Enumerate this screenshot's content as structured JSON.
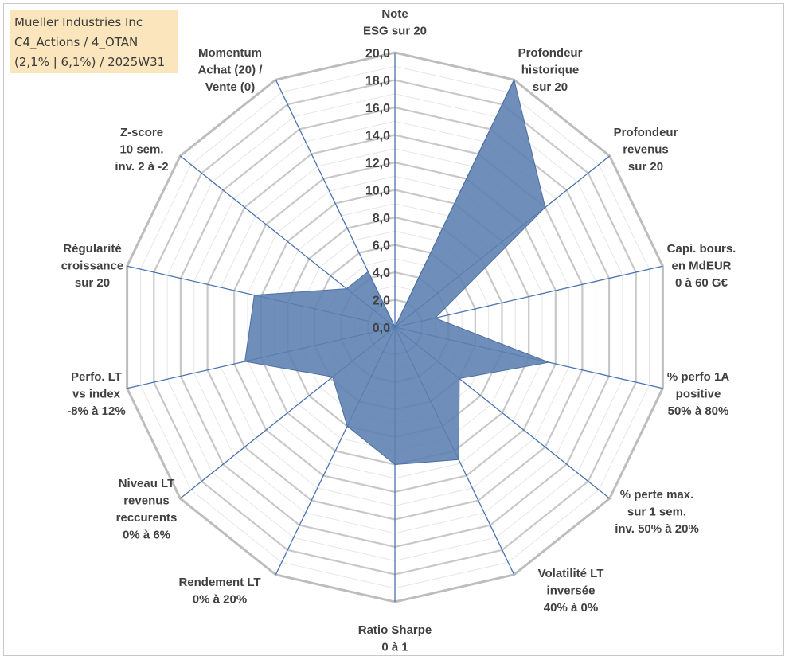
{
  "info_box": {
    "lines": [
      "Mueller Industries Inc",
      "C4_Actions / 4_OTAN",
      "(2,1% | 6,1%) / 2025W31"
    ]
  },
  "chart_data": {
    "type": "radar",
    "rmax": 20,
    "ticks": [
      "0,0",
      "2,0",
      "4,0",
      "6,0",
      "8,0",
      "10,0",
      "12,0",
      "14,0",
      "16,0",
      "18,0",
      "20,0"
    ],
    "tick_values": [
      0,
      2,
      4,
      6,
      8,
      10,
      12,
      14,
      16,
      18,
      20
    ],
    "grid": true,
    "series_color": "#5b7fb0",
    "axes": [
      {
        "label": [
          "Note",
          "ESG sur 20"
        ],
        "value": 0
      },
      {
        "label": [
          "Profondeur",
          "historique",
          "sur 20"
        ],
        "value": 20
      },
      {
        "label": [
          "Profondeur",
          "revenus",
          "sur 20"
        ],
        "value": 14
      },
      {
        "label": [
          "Capi. bours.",
          "en MdEUR",
          "0 à 60 G€"
        ],
        "value": 3
      },
      {
        "label": [
          "% perfo 1A",
          "positive",
          "50% à 80%"
        ],
        "value": 11.5
      },
      {
        "label": [
          "% perte max.",
          "sur 1 sem.",
          "inv. 50% à 20%"
        ],
        "value": 6
      },
      {
        "label": [
          "Volatilité LT",
          "inversée",
          "40% à 0%"
        ],
        "value": 10.7
      },
      {
        "label": [
          "Ratio Sharpe",
          "0 à 1"
        ],
        "value": 10
      },
      {
        "label": [
          "Rendement LT",
          "0% à 20%"
        ],
        "value": 8
      },
      {
        "label": [
          "Niveau LT",
          "revenus",
          "reccurents",
          "0% à 6%"
        ],
        "value": 5.8
      },
      {
        "label": [
          "Perfo. LT",
          "vs index",
          "-8% à 12%"
        ],
        "value": 11.2
      },
      {
        "label": [
          "Régularité",
          "croissance",
          "sur 20"
        ],
        "value": 10.5
      },
      {
        "label": [
          "Z-score",
          "10 sem.",
          "inv. 2 à -2"
        ],
        "value": 4.5
      },
      {
        "label": [
          "Momentum",
          "Achat (20) /",
          "Vente (0)"
        ],
        "value": 4.5
      }
    ]
  }
}
